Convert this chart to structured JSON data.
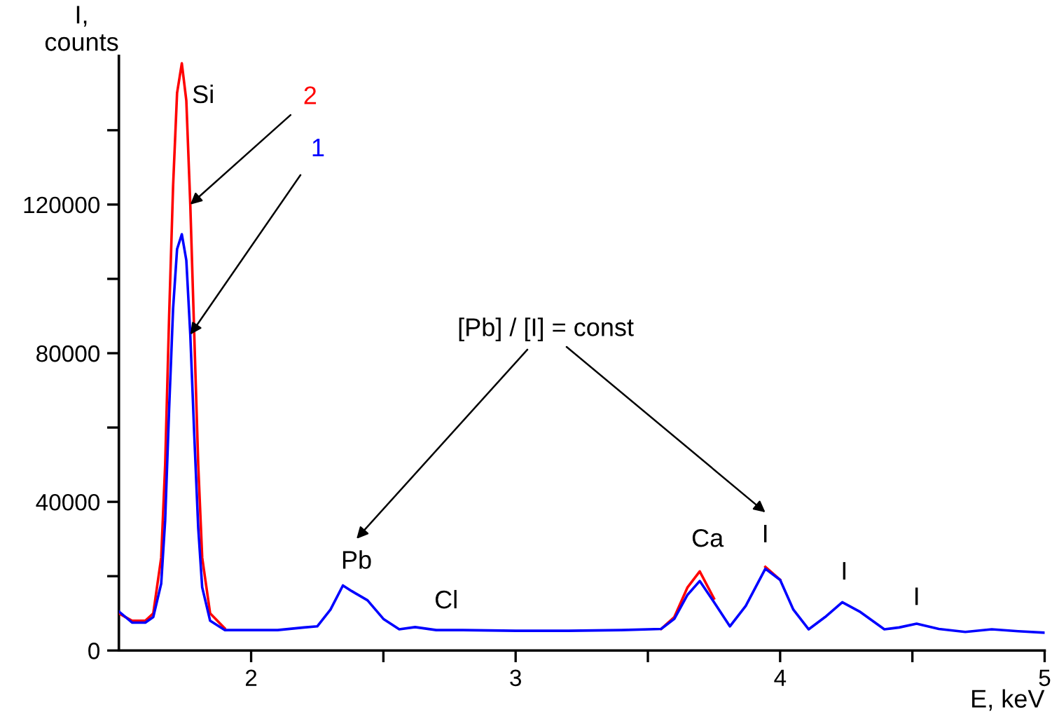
{
  "chart_data": {
    "type": "line",
    "xlabel": "E, keV",
    "ylabel": "I,\ncounts",
    "x": [
      1.5,
      1.55,
      1.6,
      1.63,
      1.66,
      1.675,
      1.69,
      1.705,
      1.72,
      1.738,
      1.755,
      1.77,
      1.785,
      1.8,
      1.815,
      1.845,
      1.9,
      2.0,
      2.1,
      2.2,
      2.25,
      2.3,
      2.347,
      2.38,
      2.44,
      2.5,
      2.56,
      2.62,
      2.7,
      2.8,
      3.0,
      3.2,
      3.4,
      3.55,
      3.6,
      3.65,
      3.696,
      3.75,
      3.81,
      3.87,
      3.944,
      4.0,
      4.05,
      4.108,
      4.17,
      4.235,
      4.3,
      4.394,
      4.45,
      4.516,
      4.6,
      4.7,
      4.8,
      4.9,
      5.0
    ],
    "series": [
      {
        "name": "1",
        "color": "#0000ff",
        "values": [
          10500,
          7500,
          7500,
          9000,
          18000,
          35000,
          65000,
          92000,
          108000,
          112000,
          105000,
          85000,
          58000,
          33000,
          17000,
          8000,
          5500,
          5500,
          5500,
          6200,
          6500,
          11000,
          17500,
          16000,
          13500,
          8500,
          5700,
          6300,
          5500,
          5500,
          5300,
          5300,
          5500,
          5800,
          8500,
          15000,
          18700,
          13000,
          6500,
          12000,
          22000,
          19000,
          11000,
          5700,
          9000,
          13000,
          10500,
          5700,
          6200,
          7200,
          5800,
          5000,
          5700,
          5200,
          4800
        ]
      },
      {
        "name": "2",
        "color": "#ff0000",
        "values": [
          10000,
          8000,
          8000,
          10000,
          25000,
          50000,
          90000,
          125000,
          150000,
          158000,
          148000,
          120000,
          85000,
          50000,
          25000,
          10000,
          6000,
          null,
          null,
          null,
          null,
          null,
          null,
          null,
          null,
          null,
          null,
          null,
          null,
          null,
          null,
          null,
          null,
          5800,
          9000,
          17000,
          21300,
          14000,
          null,
          null,
          22500,
          19000,
          null,
          null,
          null,
          null,
          null,
          null,
          null,
          null,
          null,
          null,
          null,
          null,
          null
        ]
      }
    ],
    "xlim": [
      1.5,
      5
    ],
    "xticks": [
      2,
      {
        "value": 2.5,
        "label": null
      },
      3,
      {
        "value": 3.5,
        "label": null
      },
      4,
      {
        "value": 4.5,
        "label": null
      },
      5
    ],
    "ylim": [
      0,
      160000
    ],
    "yticks": [
      0,
      {
        "value": 20000,
        "label": null
      },
      40000,
      {
        "value": 60000,
        "label": null
      },
      80000,
      {
        "value": 100000,
        "label": null
      },
      120000,
      {
        "value": 140000,
        "label": null
      }
    ],
    "grid": false,
    "legend": false,
    "marker": "none",
    "line_style": "solid",
    "annotations": [
      {
        "text": "Si",
        "x": 1.738,
        "y": 158000
      },
      {
        "text": "Pb",
        "x": 2.347,
        "y": 17500
      },
      {
        "text": "Cl",
        "x": 2.62,
        "y": 6300
      },
      {
        "text": "Ca",
        "x": 3.696,
        "y": 21300
      },
      {
        "text": "I",
        "x": 3.944,
        "y": 22500
      },
      {
        "text": "I",
        "x": 4.235,
        "y": 13000
      },
      {
        "text": "I",
        "x": 4.516,
        "y": 7200
      },
      "[Pb] / [I] = const"
    ]
  }
}
